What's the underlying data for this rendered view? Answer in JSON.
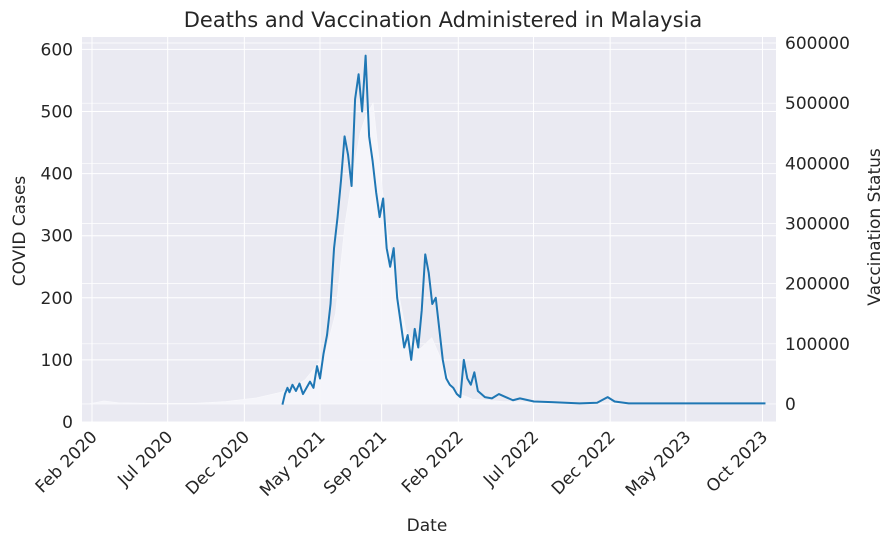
{
  "chart_data": {
    "type": "line",
    "title": "Deaths and Vaccination Administered in Malaysia",
    "xlabel": "Date",
    "ylabel": "COVID Cases",
    "ylabel_right": "Vaccination Status",
    "grid": true,
    "colors": {
      "background": "#eaeaf2",
      "grid": "#ffffff",
      "line": "#1f77b4"
    },
    "x_ticks": [
      "Feb 2020",
      "Jul 2020",
      "Dec 2020",
      "May 2021",
      "Sep 2021",
      "Feb 2022",
      "Jul 2022",
      "Dec 2022",
      "May 2023",
      "Oct 2023"
    ],
    "x_tick_dates": [
      "2020-02-01",
      "2020-07-01",
      "2020-12-01",
      "2021-05-01",
      "2021-09-01",
      "2022-02-01",
      "2022-07-01",
      "2022-12-01",
      "2023-05-01",
      "2023-10-01"
    ],
    "xlim": [
      "2020-01-12",
      "2023-10-28"
    ],
    "ylim_left": [
      0,
      620
    ],
    "y_ticks_left": [
      0,
      100,
      200,
      300,
      400,
      500,
      600
    ],
    "ylim_right": [
      -30000,
      610000
    ],
    "y_ticks_right": [
      0,
      100000,
      200000,
      300000,
      400000,
      500000,
      600000
    ],
    "series": [
      {
        "axis": "left",
        "points": [
          [
            "2021-02-15",
            28
          ],
          [
            "2021-02-20",
            45
          ],
          [
            "2021-02-25",
            55
          ],
          [
            "2021-03-01",
            48
          ],
          [
            "2021-03-07",
            60
          ],
          [
            "2021-03-14",
            50
          ],
          [
            "2021-03-21",
            62
          ],
          [
            "2021-03-28",
            45
          ],
          [
            "2021-04-04",
            55
          ],
          [
            "2021-04-11",
            65
          ],
          [
            "2021-04-18",
            55
          ],
          [
            "2021-04-25",
            90
          ],
          [
            "2021-05-01",
            70
          ],
          [
            "2021-05-08",
            110
          ],
          [
            "2021-05-15",
            140
          ],
          [
            "2021-05-22",
            190
          ],
          [
            "2021-05-29",
            280
          ],
          [
            "2021-06-05",
            330
          ],
          [
            "2021-06-12",
            390
          ],
          [
            "2021-06-19",
            460
          ],
          [
            "2021-06-26",
            430
          ],
          [
            "2021-07-03",
            380
          ],
          [
            "2021-07-10",
            520
          ],
          [
            "2021-07-17",
            560
          ],
          [
            "2021-07-24",
            500
          ],
          [
            "2021-07-31",
            590
          ],
          [
            "2021-08-07",
            460
          ],
          [
            "2021-08-14",
            420
          ],
          [
            "2021-08-21",
            370
          ],
          [
            "2021-08-28",
            330
          ],
          [
            "2021-09-04",
            360
          ],
          [
            "2021-09-11",
            280
          ],
          [
            "2021-09-18",
            250
          ],
          [
            "2021-09-25",
            280
          ],
          [
            "2021-10-02",
            200
          ],
          [
            "2021-10-09",
            160
          ],
          [
            "2021-10-16",
            120
          ],
          [
            "2021-10-23",
            140
          ],
          [
            "2021-10-30",
            100
          ],
          [
            "2021-11-06",
            150
          ],
          [
            "2021-11-13",
            120
          ],
          [
            "2021-11-20",
            180
          ],
          [
            "2021-11-27",
            270
          ],
          [
            "2021-12-04",
            240
          ],
          [
            "2021-12-11",
            190
          ],
          [
            "2021-12-18",
            200
          ],
          [
            "2021-12-25",
            150
          ],
          [
            "2022-01-01",
            100
          ],
          [
            "2022-01-08",
            70
          ],
          [
            "2022-01-15",
            60
          ],
          [
            "2022-01-22",
            55
          ],
          [
            "2022-01-29",
            45
          ],
          [
            "2022-02-05",
            40
          ],
          [
            "2022-02-12",
            100
          ],
          [
            "2022-02-19",
            70
          ],
          [
            "2022-02-26",
            60
          ],
          [
            "2022-03-05",
            80
          ],
          [
            "2022-03-12",
            50
          ],
          [
            "2022-03-19",
            45
          ],
          [
            "2022-03-26",
            40
          ],
          [
            "2022-04-09",
            38
          ],
          [
            "2022-04-23",
            45
          ],
          [
            "2022-05-07",
            40
          ],
          [
            "2022-05-21",
            35
          ],
          [
            "2022-06-04",
            38
          ],
          [
            "2022-07-02",
            33
          ],
          [
            "2022-08-06",
            32
          ],
          [
            "2022-09-03",
            31
          ],
          [
            "2022-10-01",
            30
          ],
          [
            "2022-11-05",
            31
          ],
          [
            "2022-11-26",
            40
          ],
          [
            "2022-12-10",
            33
          ],
          [
            "2023-01-07",
            30
          ],
          [
            "2023-03-04",
            30
          ],
          [
            "2023-05-06",
            30
          ],
          [
            "2023-07-01",
            30
          ],
          [
            "2023-09-02",
            30
          ],
          [
            "2023-10-07",
            30
          ]
        ]
      },
      {
        "axis": "right",
        "points": [
          [
            "2020-01-25",
            0
          ],
          [
            "2020-02-25",
            5000
          ],
          [
            "2020-03-25",
            2000
          ],
          [
            "2020-05-25",
            1000
          ],
          [
            "2020-08-25",
            1000
          ],
          [
            "2020-10-25",
            4000
          ],
          [
            "2020-12-25",
            10000
          ],
          [
            "2021-02-15",
            20000
          ],
          [
            "2021-04-01",
            40000
          ],
          [
            "2021-05-10",
            80000
          ],
          [
            "2021-06-01",
            150000
          ],
          [
            "2021-06-20",
            300000
          ],
          [
            "2021-07-05",
            380000
          ],
          [
            "2021-07-20",
            450000
          ],
          [
            "2021-08-01",
            480000
          ],
          [
            "2021-08-15",
            500000
          ],
          [
            "2021-08-25",
            420000
          ],
          [
            "2021-09-10",
            300000
          ],
          [
            "2021-10-01",
            200000
          ],
          [
            "2021-10-20",
            120000
          ],
          [
            "2021-11-15",
            90000
          ],
          [
            "2021-12-10",
            110000
          ],
          [
            "2022-01-05",
            60000
          ],
          [
            "2022-01-25",
            20000
          ],
          [
            "2022-03-01",
            8000
          ],
          [
            "2022-05-01",
            4000
          ],
          [
            "2022-09-01",
            2000
          ],
          [
            "2023-01-01",
            1000
          ],
          [
            "2023-10-07",
            500
          ]
        ]
      }
    ]
  }
}
